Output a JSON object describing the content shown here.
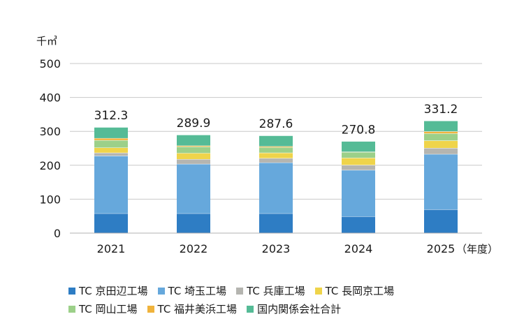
{
  "chart_data": {
    "type": "bar",
    "stacked": true,
    "unit_label": "千㎥",
    "categories": [
      "2021",
      "2022",
      "2023",
      "2024",
      "2025"
    ],
    "x_suffix_label": "（年度）",
    "ylim": [
      0,
      500
    ],
    "yticks": [
      0,
      100,
      200,
      300,
      400,
      500
    ],
    "grid": true,
    "legend_position": "bottom",
    "totals": [
      "312.3",
      "289.9",
      "287.6",
      "270.8",
      "331.2"
    ],
    "series": [
      {
        "name": "TC 京田辺工場",
        "color": "#2e7dc4",
        "values": [
          58,
          58,
          58,
          49,
          70
        ]
      },
      {
        "name": "TC 埼玉工場",
        "color": "#66a8dc",
        "values": [
          170,
          146,
          150,
          137,
          163
        ]
      },
      {
        "name": "TC 兵庫工場",
        "color": "#b5b5b0",
        "values": [
          9,
          14,
          13,
          15,
          18
        ]
      },
      {
        "name": "TC 長岡京工場",
        "color": "#efd44a",
        "values": [
          15,
          18,
          16,
          21,
          22
        ]
      },
      {
        "name": "TC 岡山工場",
        "color": "#9cd089",
        "values": [
          22,
          19,
          16,
          17,
          21
        ]
      },
      {
        "name": "TC 福井美浜工場",
        "color": "#f0b33c",
        "values": [
          6,
          3,
          3,
          1,
          6
        ]
      },
      {
        "name": "国内関係会社合計",
        "color": "#55bb96",
        "values": [
          32.3,
          31.9,
          31.6,
          30.8,
          31.2
        ]
      }
    ]
  }
}
